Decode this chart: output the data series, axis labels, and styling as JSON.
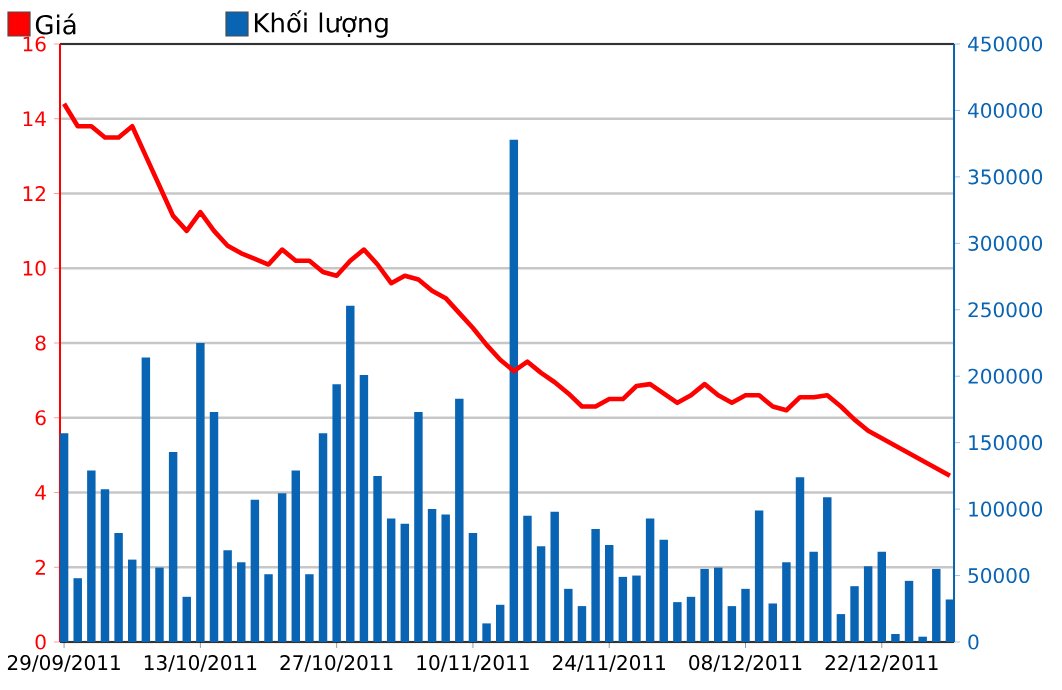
{
  "chart_data": {
    "type": "bar",
    "categories": [
      "29/09/2011",
      null,
      null,
      null,
      null,
      null,
      null,
      null,
      null,
      null,
      "13/10/2011",
      null,
      null,
      null,
      null,
      null,
      null,
      null,
      null,
      null,
      "27/10/2011",
      null,
      null,
      null,
      null,
      null,
      null,
      null,
      null,
      null,
      "10/11/2011",
      null,
      null,
      null,
      null,
      null,
      null,
      null,
      null,
      null,
      "24/11/2011",
      null,
      null,
      null,
      null,
      null,
      null,
      null,
      null,
      null,
      "08/12/2011",
      null,
      null,
      null,
      null,
      null,
      null,
      null,
      null,
      null,
      "22/12/2011",
      null,
      null,
      null,
      null,
      null
    ],
    "series": [
      {
        "name": "Giá",
        "type": "line",
        "color": "#ff0000",
        "values": [
          14.4,
          13.8,
          13.8,
          13.5,
          13.5,
          13.8,
          13.0,
          12.2,
          11.4,
          11.0,
          11.5,
          11.0,
          10.6,
          10.4,
          10.25,
          10.1,
          10.5,
          10.2,
          10.2,
          9.9,
          9.8,
          10.2,
          10.5,
          10.1,
          9.6,
          9.8,
          9.7,
          9.4,
          9.2,
          8.8,
          8.4,
          7.95,
          7.55,
          7.25,
          7.5,
          7.2,
          6.95,
          6.65,
          6.3,
          6.3,
          6.5,
          6.5,
          6.85,
          6.9,
          6.65,
          6.4,
          6.6,
          6.9,
          6.6,
          6.4,
          6.6,
          6.6,
          6.3,
          6.2,
          6.55,
          6.55,
          6.6,
          6.3,
          5.95,
          5.65,
          5.45,
          5.25,
          5.05,
          4.85,
          4.65,
          4.45
        ]
      },
      {
        "name": "Khối lượng",
        "axis": "y2",
        "color": "#0a64b4",
        "values": [
          157000,
          48000,
          129000,
          115000,
          82000,
          62000,
          214000,
          56000,
          143000,
          34000,
          225000,
          173000,
          69000,
          60000,
          107000,
          51000,
          112000,
          129000,
          51000,
          157000,
          194000,
          253000,
          201000,
          125000,
          93000,
          89000,
          173000,
          100000,
          96000,
          183000,
          82000,
          14000,
          28000,
          378000,
          95000,
          72000,
          98000,
          40000,
          27000,
          85000,
          73000,
          49000,
          50000,
          93000,
          77000,
          30000,
          34000,
          55000,
          56000,
          27000,
          40000,
          99000,
          29000,
          60000,
          124000,
          68000,
          109000,
          21000,
          42000,
          57000,
          68000,
          6000,
          46000,
          4000,
          55000,
          32000
        ]
      }
    ],
    "ylim": [
      0,
      16
    ],
    "yticks": [
      0,
      2,
      4,
      6,
      8,
      10,
      12,
      14,
      16
    ],
    "y2lim": [
      0,
      450000
    ],
    "y2ticks": [
      0,
      50000,
      100000,
      150000,
      200000,
      250000,
      300000,
      350000,
      400000,
      450000
    ],
    "grid": "y",
    "legend": "top left"
  }
}
